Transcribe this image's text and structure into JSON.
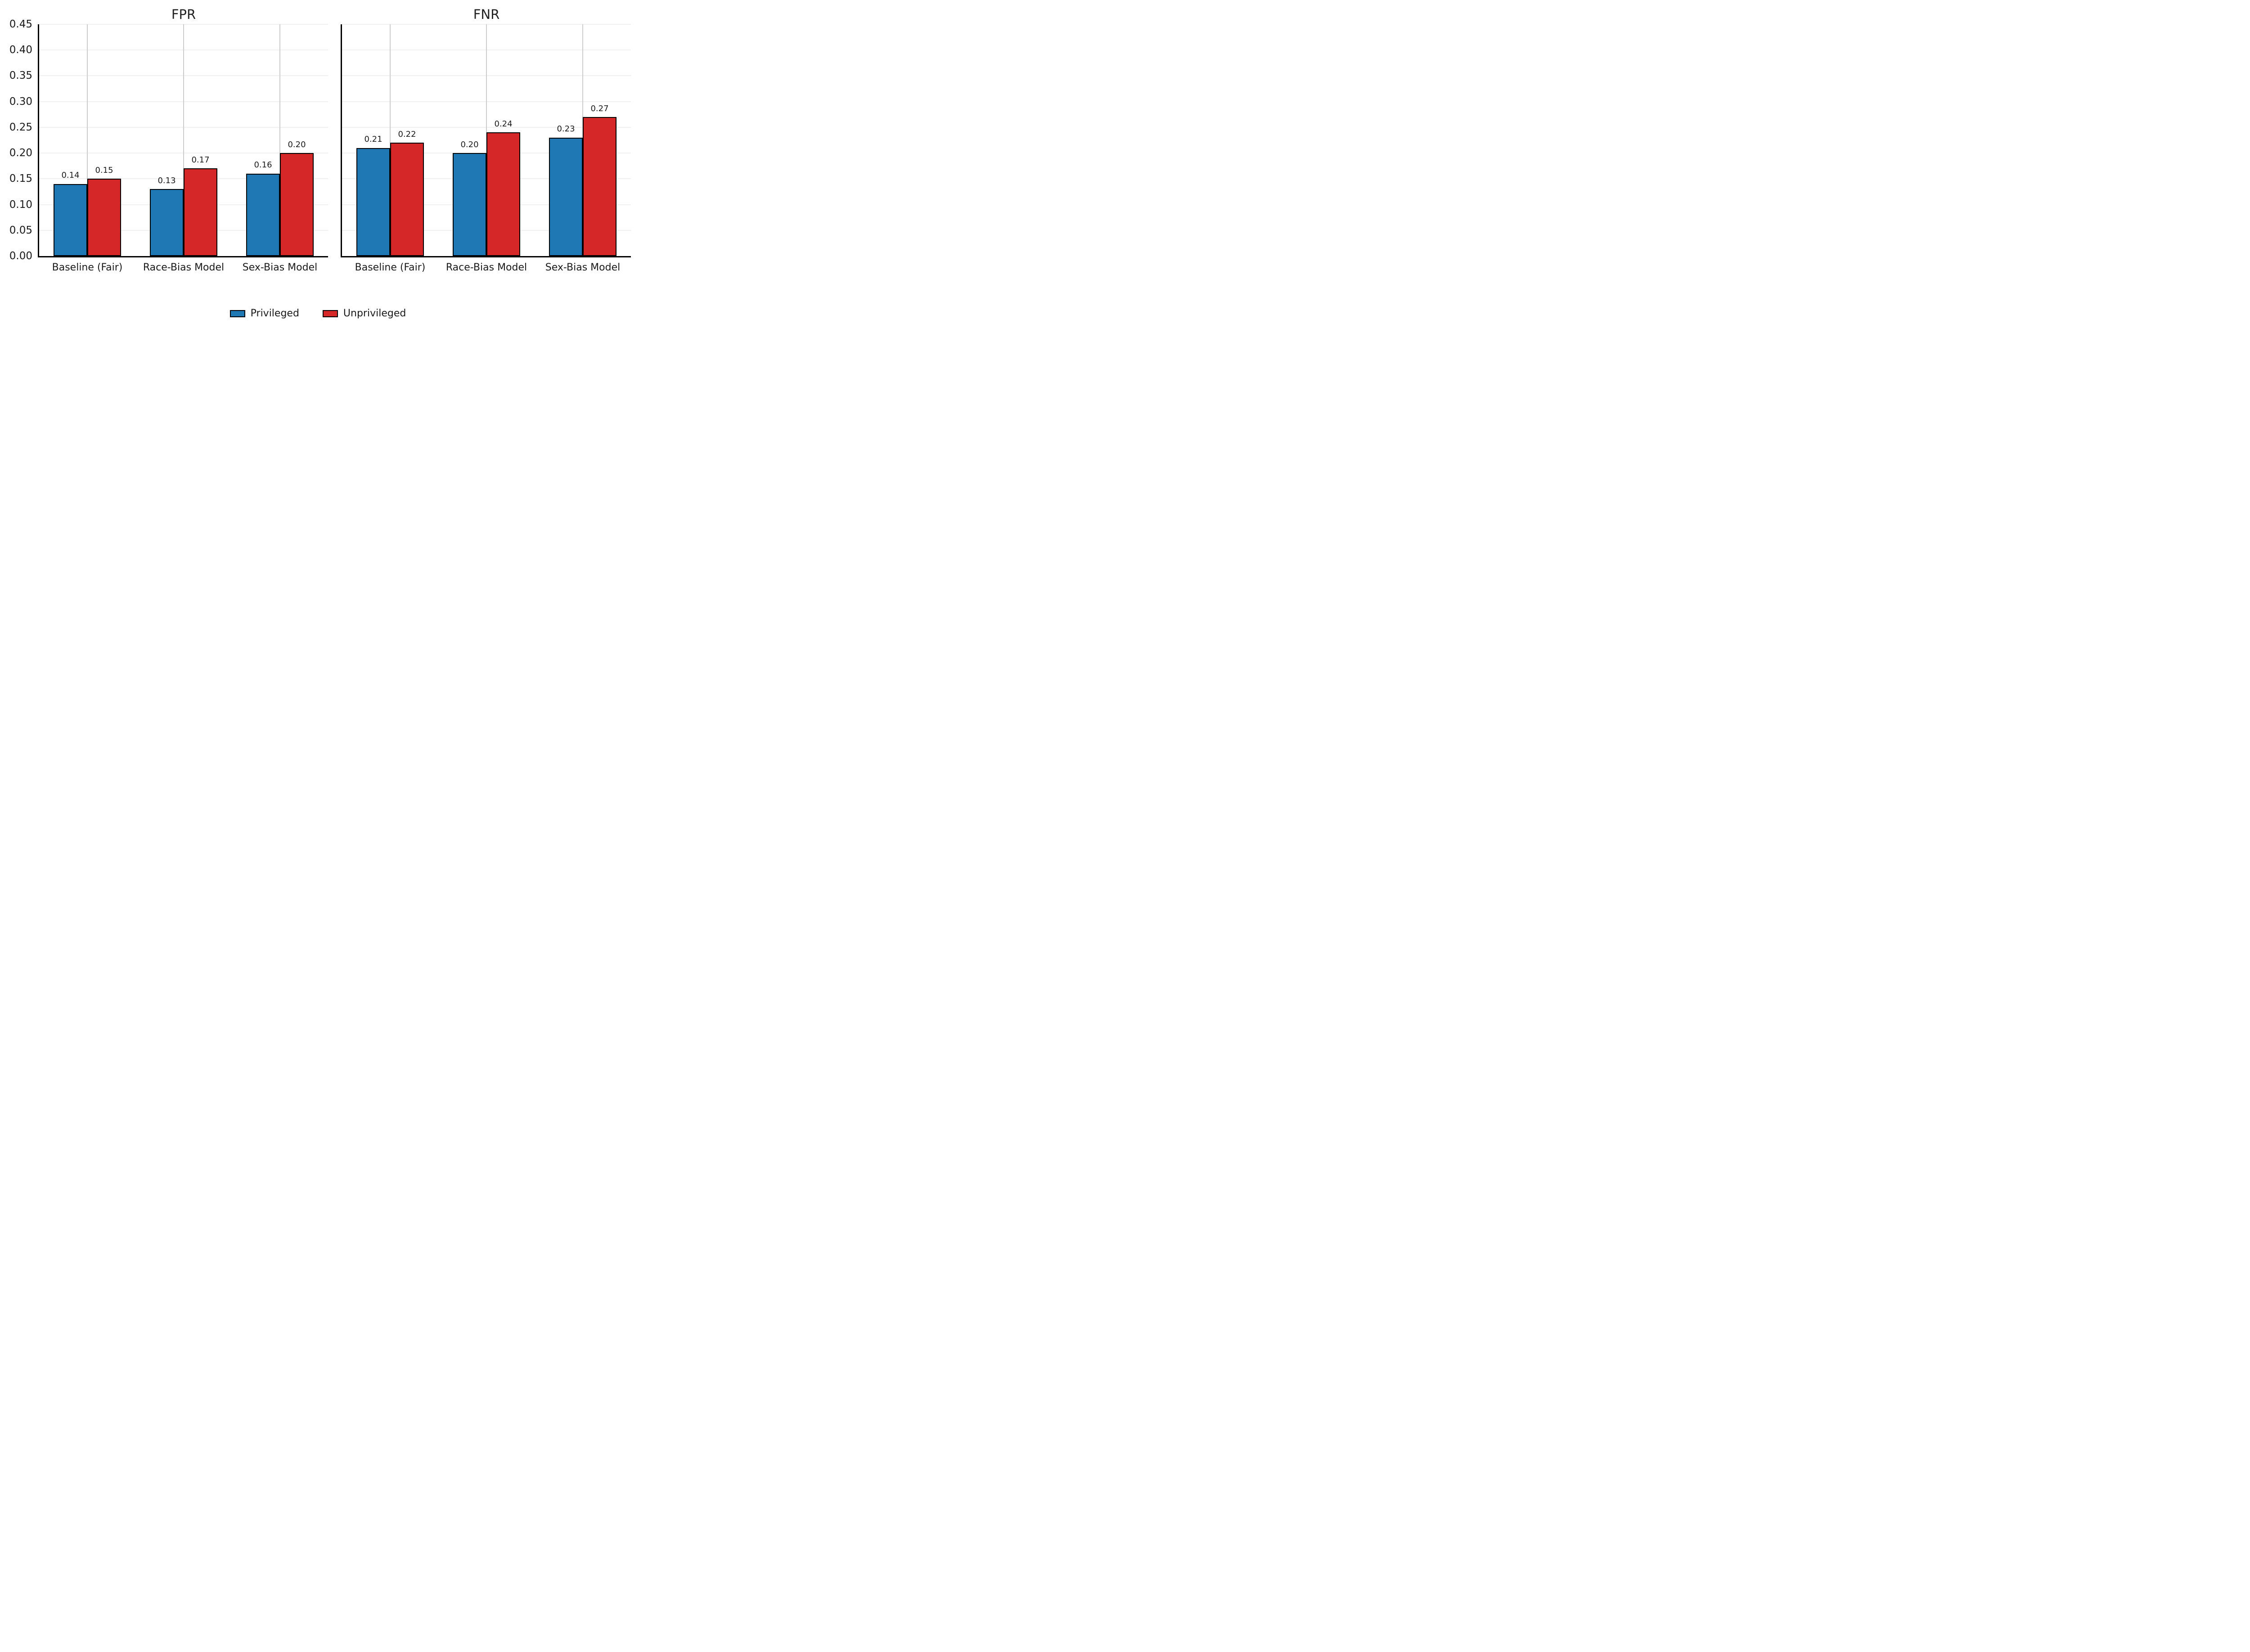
{
  "figure": {
    "background": "#ffffff",
    "text_color": "#1a1a1a"
  },
  "colors": {
    "privileged": "#1f77b4",
    "unprivileged": "#d62728",
    "bar_edge": "#000000",
    "grid_horizontal": "#f0f0f0",
    "grid_vertical": "#cccccc",
    "spine": "#000000"
  },
  "y_axis": {
    "min": 0.0,
    "max": 0.45,
    "step": 0.05,
    "tick_labels": [
      "0.00",
      "0.05",
      "0.10",
      "0.15",
      "0.20",
      "0.25",
      "0.30",
      "0.35",
      "0.40",
      "0.45"
    ]
  },
  "legend": {
    "position": "bottom-center",
    "items": [
      {
        "label": "Privileged",
        "color_key": "privileged"
      },
      {
        "label": "Unprivileged",
        "color_key": "unprivileged"
      }
    ]
  },
  "chart_data": [
    {
      "type": "bar",
      "title": "FPR",
      "categories": [
        "Baseline (Fair)",
        "Race-Bias Model",
        "Sex-Bias Model"
      ],
      "series": [
        {
          "name": "Privileged",
          "values": [
            0.14,
            0.13,
            0.16
          ]
        },
        {
          "name": "Unprivileged",
          "values": [
            0.15,
            0.17,
            0.2
          ]
        }
      ],
      "value_labels": [
        [
          "0.14",
          "0.13",
          "0.16"
        ],
        [
          "0.15",
          "0.17",
          "0.20"
        ]
      ],
      "ylim": [
        0,
        0.45
      ],
      "grid": true,
      "legend_position": "none"
    },
    {
      "type": "bar",
      "title": "FNR",
      "categories": [
        "Baseline (Fair)",
        "Race-Bias Model",
        "Sex-Bias Model"
      ],
      "series": [
        {
          "name": "Privileged",
          "values": [
            0.21,
            0.2,
            0.23
          ]
        },
        {
          "name": "Unprivileged",
          "values": [
            0.22,
            0.24,
            0.27
          ]
        }
      ],
      "value_labels": [
        [
          "0.21",
          "0.20",
          "0.23"
        ],
        [
          "0.22",
          "0.24",
          "0.27"
        ]
      ],
      "ylim": [
        0,
        0.45
      ],
      "grid": true,
      "legend_position": "none"
    }
  ]
}
